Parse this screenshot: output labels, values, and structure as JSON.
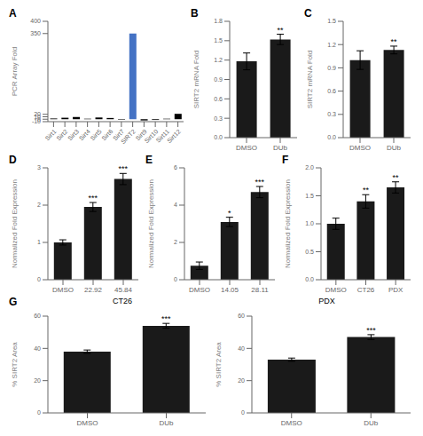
{
  "chart_data": [
    {
      "type": "bar",
      "categories": [
        "Sirt1",
        "Sirt2",
        "Sirt3",
        "Sirt4",
        "Sirt5",
        "Sirt6",
        "Sirt7",
        "SIRT2",
        "Sirt9",
        "Sirt10",
        "Sirt11",
        "Sirt12"
      ],
      "values": [
        3,
        6,
        9,
        2,
        7,
        5,
        -2,
        350,
        -5,
        -3,
        2,
        22
      ],
      "colors": [
        "black",
        "black",
        "black",
        "black",
        "black",
        "black",
        "black",
        "#4472C4",
        "black",
        "black",
        "black",
        "black"
      ],
      "ylabel": "PCR Array Fold",
      "ylim": [
        -10,
        400
      ],
      "yticks": [
        -10,
        0,
        10,
        20,
        350,
        400
      ],
      "annotations": [
        {
          "text": "A"
        }
      ]
    },
    {
      "type": "bar",
      "categories": [
        "DMSO",
        "DUb"
      ],
      "values": [
        1.18,
        1.52
      ],
      "errors": [
        0.13,
        0.08
      ],
      "color": "#1a1a1a",
      "ylabel": "SIRT2 mRNA Fold",
      "ylim": [
        0,
        1.8
      ],
      "yticks": [
        {
          "value": 0,
          "label": "0.0"
        },
        0.3,
        0.6,
        0.9,
        1.2,
        1.5,
        1.8
      ],
      "annotations": [
        {
          "text": "B"
        },
        {
          "text": "**",
          "category": "DUb"
        }
      ]
    },
    {
      "type": "bar",
      "categories": [
        "DMSO",
        "DUb"
      ],
      "values": [
        1.0,
        1.13
      ],
      "errors": [
        0.12,
        0.05
      ],
      "color": "#1a1a1a",
      "ylabel": "SIRT2 mRNA Fold",
      "ylim": [
        0,
        1.5
      ],
      "yticks": [
        {
          "value": 0,
          "label": "0.0"
        },
        0.3,
        0.6,
        0.9,
        1.2,
        1.5
      ],
      "annotations": [
        {
          "text": "C"
        },
        {
          "text": "**",
          "category": "DUb"
        }
      ]
    },
    {
      "type": "bar",
      "categories": [
        "DMSO",
        "22.92",
        "45.84"
      ],
      "values": [
        1.0,
        1.95,
        2.7
      ],
      "errors": [
        0.07,
        0.12,
        0.15
      ],
      "color": "#1a1a1a",
      "ylabel": "Normalized Fold Expression",
      "ylim": [
        0,
        3
      ],
      "yticks": [
        0,
        1,
        2,
        3
      ],
      "annotations": [
        {
          "text": "D"
        },
        {
          "text": "***",
          "category": "22.92"
        },
        {
          "text": "***",
          "category": "45.84"
        }
      ]
    },
    {
      "type": "bar",
      "categories": [
        "DMSO",
        "14.05",
        "28.11"
      ],
      "values": [
        0.75,
        3.1,
        4.7
      ],
      "errors": [
        0.2,
        0.25,
        0.3
      ],
      "color": "#1a1a1a",
      "ylabel": "Normalized Fold Expression",
      "ylim": [
        0,
        6
      ],
      "yticks": [
        0,
        2,
        4,
        6
      ],
      "annotations": [
        {
          "text": "E"
        },
        {
          "text": "*",
          "category": "14.05"
        },
        {
          "text": "***",
          "category": "28.11"
        }
      ]
    },
    {
      "type": "bar",
      "categories": [
        "DMSO",
        "CT26",
        "PDX"
      ],
      "values": [
        1.0,
        1.4,
        1.65
      ],
      "errors": [
        0.1,
        0.12,
        0.1
      ],
      "color": "#1a1a1a",
      "ylabel": "Normalized Fold Expression",
      "ylim": [
        0,
        2
      ],
      "yticks": [
        {
          "value": 0,
          "label": "0.0"
        },
        0.5,
        {
          "value": 1,
          "label": "1.0"
        },
        1.5,
        {
          "value": 2,
          "label": "2.0"
        }
      ],
      "annotations": [
        {
          "text": "F"
        },
        {
          "text": "**",
          "category": "CT26"
        },
        {
          "text": "**",
          "category": "PDX"
        }
      ]
    },
    {
      "type": "bar",
      "title": "CT26",
      "categories": [
        "DMSO",
        "DUb"
      ],
      "values": [
        38,
        54
      ],
      "errors": [
        1.0,
        1.5
      ],
      "color": "#1a1a1a",
      "ylabel": "% SIRT2 Area",
      "ylim": [
        0,
        60
      ],
      "yticks": [
        0,
        20,
        40,
        60
      ],
      "annotations": [
        {
          "text": "G"
        },
        {
          "text": "***",
          "category": "DUb"
        }
      ]
    },
    {
      "type": "bar",
      "title": "PDX",
      "categories": [
        "DMSO",
        "DUb"
      ],
      "values": [
        33,
        47
      ],
      "errors": [
        1.0,
        1.5
      ],
      "color": "#1a1a1a",
      "ylabel": "% SIRT2 Area",
      "ylim": [
        0,
        60
      ],
      "yticks": [
        0,
        20,
        40,
        60
      ],
      "annotations": [
        {
          "text": "***",
          "category": "DUb"
        }
      ]
    }
  ]
}
